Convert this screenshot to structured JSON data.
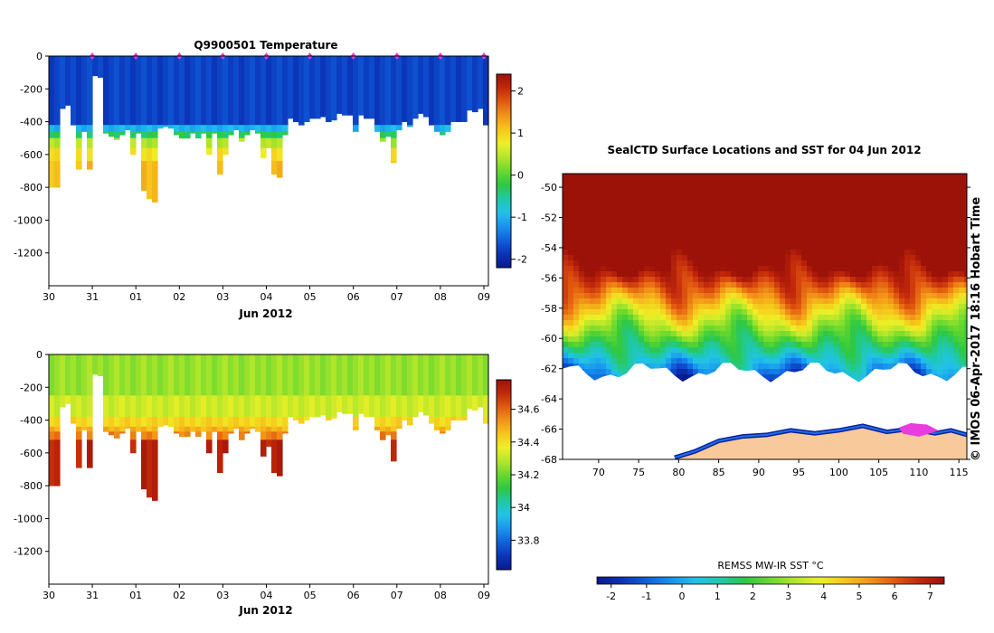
{
  "colors": {
    "cmap": [
      "#0a1a8f",
      "#0b33b8",
      "#1060dc",
      "#1894ee",
      "#22c2e8",
      "#1fc9a6",
      "#2ec842",
      "#6bd92e",
      "#b4e62a",
      "#eef026",
      "#f6c71c",
      "#f29418",
      "#e25a10",
      "#c2290b",
      "#9c1208"
    ],
    "land": "#f8c99a",
    "magenta": "#e83be0",
    "axis": "#000000"
  },
  "chart_data": [
    {
      "id": "temperature",
      "type": "heatmap",
      "title": "Q9900501  Temperature",
      "xlabel": "Jun 2012",
      "x_tick_labels": [
        "30",
        "31",
        "01",
        "02",
        "03",
        "04",
        "05",
        "06",
        "07",
        "08",
        "09"
      ],
      "y_tick_values": [
        0,
        -200,
        -400,
        -600,
        -800,
        -1000,
        -1200
      ],
      "ylim": [
        -1400,
        0
      ],
      "xlim_days": [
        0,
        10
      ],
      "colorbar_ticks": [
        2,
        1,
        0,
        -1,
        -2
      ],
      "colorbar_range": [
        -2.2,
        2.4
      ],
      "marker_days": [
        1,
        2,
        3,
        4,
        5,
        6,
        7,
        8,
        9,
        10
      ],
      "profile_depths_m": [
        800,
        800,
        320,
        300,
        420,
        690,
        460,
        690,
        120,
        130,
        470,
        490,
        510,
        480,
        450,
        600,
        470,
        820,
        870,
        890,
        440,
        430,
        440,
        480,
        500,
        500,
        470,
        500,
        470,
        600,
        470,
        720,
        600,
        480,
        450,
        520,
        480,
        450,
        470,
        620,
        560,
        720,
        740,
        480,
        380,
        400,
        420,
        400,
        380,
        380,
        370,
        400,
        390,
        350,
        360,
        360,
        460,
        360,
        380,
        380,
        460,
        520,
        490,
        650,
        450,
        400,
        430,
        380,
        350,
        370,
        420,
        460,
        480,
        460,
        400,
        400,
        400,
        330,
        340,
        320,
        420
      ],
      "layers": [
        {
          "to": 420,
          "value": -1.75
        },
        {
          "to": 460,
          "value": -1.0
        },
        {
          "to": 500,
          "value": -0.3
        },
        {
          "to": 560,
          "value": 0.4
        },
        {
          "to": 640,
          "value": 0.9
        },
        {
          "to": 900,
          "value": 1.15
        }
      ]
    },
    {
      "id": "salinity",
      "type": "heatmap",
      "title": "",
      "xlabel": "Jun 2012",
      "x_tick_labels": [
        "30",
        "31",
        "01",
        "02",
        "03",
        "04",
        "05",
        "06",
        "07",
        "08",
        "09"
      ],
      "y_tick_values": [
        0,
        -200,
        -400,
        -600,
        -800,
        -1000,
        -1200
      ],
      "ylim": [
        -1400,
        0
      ],
      "xlim_days": [
        0,
        10
      ],
      "colorbar_ticks": [
        34.6,
        34.4,
        34.2,
        34,
        33.8
      ],
      "colorbar_range": [
        33.62,
        34.78
      ],
      "layers": [
        {
          "to": 250,
          "value": 34.25
        },
        {
          "to": 380,
          "value": 34.32
        },
        {
          "to": 440,
          "value": 34.42
        },
        {
          "to": 470,
          "value": 34.48
        },
        {
          "to": 520,
          "value": 34.56
        },
        {
          "to": 900,
          "value": 34.72
        }
      ]
    },
    {
      "id": "sst_map",
      "type": "heatmap",
      "title": "SealCTD Surface Locations and SST for 04 Jun 2012",
      "x_tick_labels": [
        "70",
        "75",
        "80",
        "85",
        "90",
        "95",
        "100",
        "105",
        "110",
        "115"
      ],
      "x_tick_values": [
        70,
        75,
        80,
        85,
        90,
        95,
        100,
        105,
        110,
        115
      ],
      "y_tick_labels": [
        "-50",
        "-52",
        "-54",
        "-56",
        "-58",
        "-60",
        "-62",
        "-64",
        "-66",
        "-68"
      ],
      "y_tick_values": [
        -50,
        -52,
        -54,
        -56,
        -58,
        -60,
        -62,
        -64,
        -66,
        -68
      ],
      "lon_range": [
        65.5,
        116
      ],
      "lat_range": [
        -68,
        -49.1
      ],
      "sst_range_c": [
        -2.4,
        7.4
      ]
    }
  ],
  "colorbar_sst": {
    "label": "REMSS MW-IR SST °C",
    "tick_labels": [
      "-2",
      "-1",
      "0",
      "1",
      "2",
      "3",
      "4",
      "5",
      "6",
      "7"
    ],
    "tick_values": [
      -2,
      -1,
      0,
      1,
      2,
      3,
      4,
      5,
      6,
      7
    ]
  },
  "stamp": "©  IMOS 06-Apr-2017 18:16 Hobart Time"
}
